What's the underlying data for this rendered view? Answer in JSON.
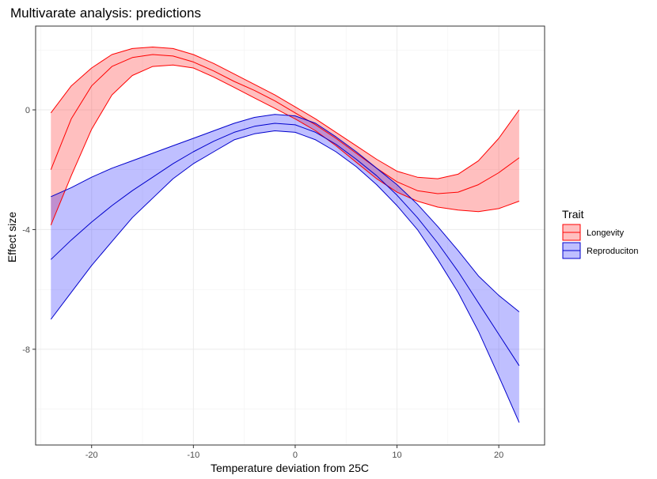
{
  "chart_data": {
    "type": "line",
    "title": "Multivarate analysis: predictions",
    "xlabel": "Temperature deviation from 25C",
    "ylabel": "Effect size",
    "xlim": [
      -25.5,
      24.5
    ],
    "ylim": [
      -11.2,
      2.8
    ],
    "x_ticks": [
      -20,
      -10,
      0,
      10,
      20
    ],
    "y_ticks": [
      0,
      -4,
      -8
    ],
    "x_minor_ticks": [
      -25,
      -15,
      -5,
      5,
      15
    ],
    "y_minor_ticks": [
      2,
      -2,
      -6,
      -10
    ],
    "grid": true,
    "legend": {
      "title": "Trait",
      "position": "right"
    },
    "series": [
      {
        "name": "Longevity",
        "line_color": "#ff0000",
        "fill_color": "#ff0000",
        "x": [
          -24,
          -22,
          -20,
          -18,
          -16,
          -14,
          -12,
          -10,
          -8,
          -6,
          -4,
          -2,
          0,
          2,
          4,
          6,
          8,
          10,
          12,
          14,
          16,
          18,
          20,
          22
        ],
        "y": [
          -2.0,
          -0.3,
          0.8,
          1.45,
          1.75,
          1.85,
          1.8,
          1.6,
          1.3,
          0.95,
          0.65,
          0.3,
          -0.1,
          -0.5,
          -0.95,
          -1.45,
          -1.95,
          -2.4,
          -2.7,
          -2.8,
          -2.75,
          -2.5,
          -2.1,
          -1.6
        ],
        "ymin": [
          -3.85,
          -2.2,
          -0.65,
          0.5,
          1.15,
          1.45,
          1.5,
          1.4,
          1.1,
          0.75,
          0.4,
          0.05,
          -0.3,
          -0.7,
          -1.2,
          -1.75,
          -2.3,
          -2.75,
          -3.05,
          -3.25,
          -3.35,
          -3.4,
          -3.3,
          -3.05
        ],
        "ymax": [
          -0.1,
          0.8,
          1.4,
          1.85,
          2.05,
          2.1,
          2.05,
          1.85,
          1.55,
          1.2,
          0.85,
          0.5,
          0.1,
          -0.3,
          -0.75,
          -1.2,
          -1.65,
          -2.05,
          -2.25,
          -2.3,
          -2.15,
          -1.7,
          -0.95,
          0.0
        ]
      },
      {
        "name": "Reproduciton",
        "line_color": "#0000cc",
        "fill_color": "#0000ff",
        "x": [
          -24,
          -22,
          -20,
          -18,
          -16,
          -14,
          -12,
          -10,
          -8,
          -6,
          -4,
          -2,
          0,
          2,
          4,
          6,
          8,
          10,
          12,
          14,
          16,
          18,
          20,
          22
        ],
        "y": [
          -5.0,
          -4.35,
          -3.75,
          -3.2,
          -2.7,
          -2.25,
          -1.8,
          -1.4,
          -1.05,
          -0.75,
          -0.55,
          -0.45,
          -0.5,
          -0.75,
          -1.15,
          -1.65,
          -2.2,
          -2.85,
          -3.6,
          -4.45,
          -5.4,
          -6.45,
          -7.5,
          -8.55
        ],
        "ymin": [
          -7.0,
          -6.1,
          -5.2,
          -4.4,
          -3.6,
          -2.95,
          -2.3,
          -1.8,
          -1.4,
          -1.0,
          -0.8,
          -0.7,
          -0.75,
          -1.0,
          -1.4,
          -1.9,
          -2.5,
          -3.2,
          -4.0,
          -5.0,
          -6.1,
          -7.4,
          -8.9,
          -10.45
        ],
        "ymax": [
          -2.9,
          -2.6,
          -2.25,
          -1.95,
          -1.7,
          -1.45,
          -1.2,
          -0.95,
          -0.7,
          -0.45,
          -0.25,
          -0.15,
          -0.2,
          -0.45,
          -0.9,
          -1.4,
          -1.95,
          -2.5,
          -3.15,
          -3.9,
          -4.7,
          -5.55,
          -6.2,
          -6.75
        ]
      }
    ]
  }
}
